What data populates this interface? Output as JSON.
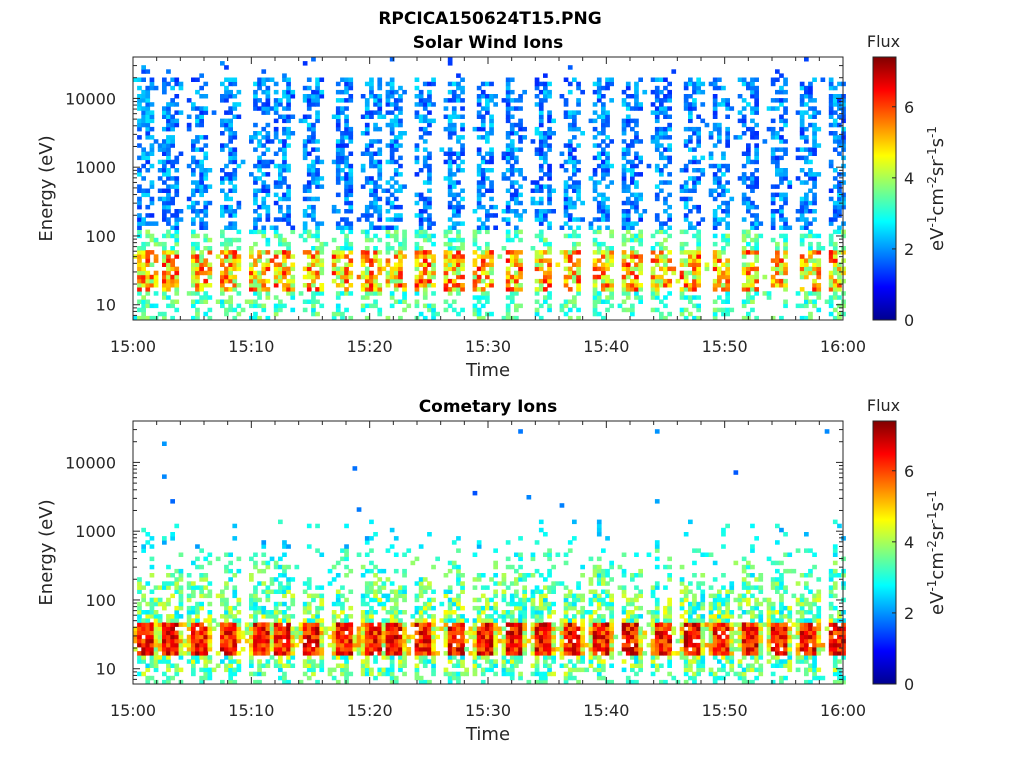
{
  "figure": {
    "title": "RPCICA150624T15.PNG"
  },
  "chart_data": [
    {
      "type": "heatmap",
      "title": "Solar Wind Ions",
      "xlabel": "Time",
      "ylabel": "Energy (eV)",
      "x_range": [
        "15:00",
        "16:00"
      ],
      "x_ticks": [
        "15:00",
        "15:10",
        "15:20",
        "15:30",
        "15:40",
        "15:50",
        "16:00"
      ],
      "y_scale": "log",
      "y_range": [
        6,
        40000
      ],
      "y_ticks": [
        "10",
        "100",
        "1000",
        "10000"
      ],
      "grid": false,
      "colorbar": {
        "label": "Flux",
        "units": "eV-1cm-2sr-1s-1",
        "range": [
          0,
          7.4
        ],
        "ticks": [
          "0",
          "2",
          "4",
          "6"
        ],
        "colormap": "jet"
      },
      "scan_times_min": [
        1,
        3,
        5.5,
        8,
        10.5,
        12.5,
        15,
        17.5,
        20,
        22,
        24.5,
        27,
        29.5,
        32,
        34.5,
        37,
        39.5,
        42,
        44.5,
        47,
        49.5,
        52,
        54.5,
        57,
        59.5
      ],
      "features": {
        "low_energy_band_eV": [
          10,
          60
        ],
        "low_energy_flux": [
          3.5,
          6.5
        ],
        "high_energy_band_eV": [
          120,
          20000
        ],
        "high_energy_flux": [
          1.2,
          2.6
        ]
      }
    },
    {
      "type": "heatmap",
      "title": "Cometary Ions",
      "xlabel": "Time",
      "ylabel": "Energy (eV)",
      "x_range": [
        "15:00",
        "16:00"
      ],
      "x_ticks": [
        "15:00",
        "15:10",
        "15:20",
        "15:30",
        "15:40",
        "15:50",
        "16:00"
      ],
      "y_scale": "log",
      "y_range": [
        6,
        40000
      ],
      "y_ticks": [
        "10",
        "100",
        "1000",
        "10000"
      ],
      "grid": false,
      "colorbar": {
        "label": "Flux",
        "units": "eV-1cm-2sr-1s-1",
        "range": [
          0,
          7.4
        ],
        "ticks": [
          "0",
          "2",
          "4",
          "6"
        ],
        "colormap": "jet"
      },
      "scan_times_min": [
        1,
        3,
        5.5,
        8,
        10.5,
        12.5,
        15,
        17.5,
        20,
        22,
        24.5,
        27,
        29.5,
        32,
        34.5,
        37,
        39.5,
        42,
        44.5,
        47,
        49.5,
        52,
        54.5,
        57,
        59.5
      ],
      "features": {
        "core_band_eV": [
          15,
          45
        ],
        "core_flux": [
          5.5,
          7.2
        ],
        "extended_band_eV": [
          8,
          600
        ],
        "extended_flux": [
          2.5,
          5.0
        ],
        "sparse_high_energy_eV": [
          1000,
          30000
        ]
      }
    }
  ]
}
